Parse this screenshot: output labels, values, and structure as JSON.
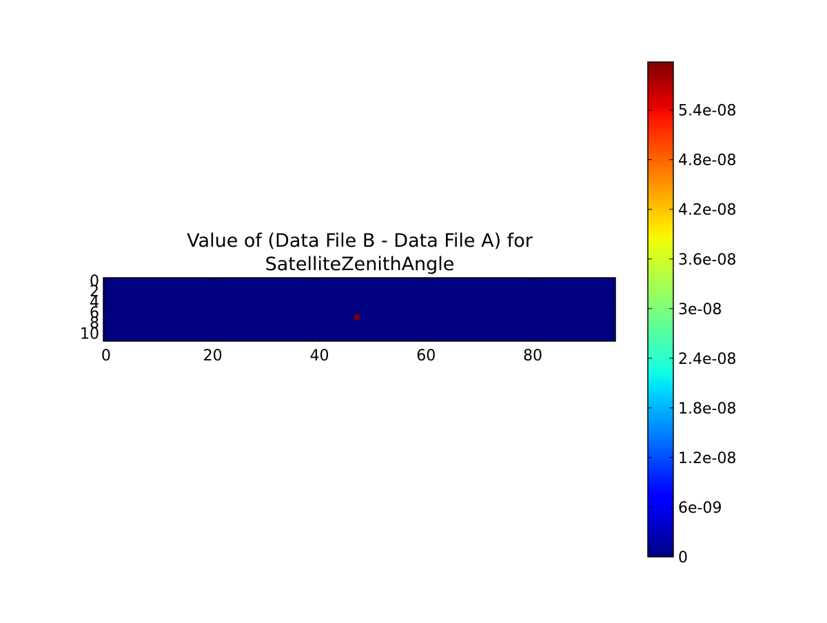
{
  "chart_data": {
    "type": "heatmap",
    "title": [
      "Value of (Data File B - Data File A) for",
      "SatelliteZenithAngle"
    ],
    "colormap": "jet",
    "xlim": [
      -0.5,
      95.5
    ],
    "ylim": [
      11.5,
      -0.5
    ],
    "xticks": [
      0,
      20,
      40,
      60,
      80
    ],
    "yticks": [
      0,
      2,
      4,
      6,
      8,
      10
    ],
    "clim": [
      0,
      5.98e-08
    ],
    "cticks": [
      0,
      {
        "value": 6e-09,
        "label": "6e-09"
      },
      {
        "value": 1.2e-08,
        "label": "1.2e-08"
      },
      {
        "value": 1.8e-08,
        "label": "1.8e-08"
      },
      {
        "value": 2.4e-08,
        "label": "2.4e-08"
      },
      {
        "value": 3e-08,
        "label": "3e-08"
      },
      {
        "value": 3.6e-08,
        "label": "3.6e-08"
      },
      {
        "value": 4.2e-08,
        "label": "4.2e-08"
      },
      {
        "value": 4.8e-08,
        "label": "4.8e-08"
      },
      {
        "value": 5.4e-08,
        "label": "5.4e-08"
      }
    ],
    "z": [
      [
        0,
        0,
        0,
        0,
        0,
        0,
        0,
        0,
        0,
        0,
        0,
        0,
        0,
        0,
        0,
        0,
        0,
        0,
        0,
        0,
        0,
        0,
        0,
        0,
        0,
        0,
        0,
        0,
        0,
        0,
        0,
        0,
        0,
        0,
        0,
        0,
        0,
        0,
        0,
        0,
        0,
        0,
        0,
        0,
        0,
        0,
        0,
        0,
        0,
        0,
        0,
        0,
        0,
        0,
        0,
        0,
        0,
        0,
        0,
        0,
        0,
        0,
        0,
        0,
        0,
        0,
        0,
        0,
        0,
        0,
        0,
        0,
        0,
        0,
        0,
        0,
        0,
        0,
        0,
        0,
        0,
        0,
        0,
        0,
        0,
        0,
        0,
        0,
        0,
        0,
        0,
        0,
        0,
        0,
        0,
        0
      ],
      [
        0,
        0,
        0,
        0,
        0,
        0,
        0,
        0,
        0,
        0,
        0,
        0,
        0,
        0,
        0,
        0,
        0,
        0,
        0,
        0,
        0,
        0,
        0,
        0,
        0,
        0,
        0,
        0,
        0,
        0,
        0,
        0,
        0,
        0,
        0,
        0,
        0,
        0,
        0,
        0,
        0,
        0,
        0,
        0,
        0,
        0,
        0,
        0,
        0,
        0,
        0,
        0,
        0,
        0,
        0,
        0,
        0,
        0,
        0,
        0,
        0,
        0,
        0,
        0,
        0,
        0,
        0,
        0,
        0,
        0,
        0,
        0,
        0,
        0,
        0,
        0,
        0,
        0,
        0,
        0,
        0,
        0,
        0,
        0,
        0,
        0,
        0,
        0,
        0,
        0,
        0,
        0,
        0,
        0,
        0,
        0
      ],
      [
        0,
        0,
        0,
        0,
        0,
        0,
        0,
        0,
        0,
        0,
        0,
        0,
        0,
        0,
        0,
        0,
        0,
        0,
        0,
        0,
        0,
        0,
        0,
        0,
        0,
        0,
        0,
        0,
        0,
        0,
        0,
        0,
        0,
        0,
        0,
        0,
        0,
        0,
        0,
        0,
        0,
        0,
        0,
        0,
        0,
        0,
        0,
        0,
        0,
        0,
        0,
        0,
        0,
        0,
        0,
        0,
        0,
        0,
        0,
        0,
        0,
        0,
        0,
        0,
        0,
        0,
        0,
        0,
        0,
        0,
        0,
        0,
        0,
        0,
        0,
        0,
        0,
        0,
        0,
        0,
        0,
        0,
        0,
        0,
        0,
        0,
        0,
        0,
        0,
        0,
        0,
        0,
        0,
        0,
        0,
        0
      ],
      [
        0,
        0,
        0,
        0,
        0,
        0,
        0,
        0,
        0,
        0,
        0,
        0,
        0,
        0,
        0,
        0,
        0,
        0,
        0,
        0,
        0,
        0,
        0,
        0,
        0,
        0,
        0,
        0,
        0,
        0,
        0,
        0,
        0,
        0,
        0,
        0,
        0,
        0,
        0,
        0,
        0,
        0,
        0,
        0,
        0,
        0,
        0,
        0,
        0,
        0,
        0,
        0,
        0,
        0,
        0,
        0,
        0,
        0,
        0,
        0,
        0,
        0,
        0,
        0,
        0,
        0,
        0,
        0,
        0,
        0,
        0,
        0,
        0,
        0,
        0,
        0,
        0,
        0,
        0,
        0,
        0,
        0,
        0,
        0,
        0,
        0,
        0,
        0,
        0,
        0,
        0,
        0,
        0,
        0,
        0,
        0
      ],
      [
        0,
        0,
        0,
        0,
        0,
        0,
        0,
        0,
        0,
        0,
        0,
        0,
        0,
        0,
        0,
        0,
        0,
        0,
        0,
        0,
        0,
        0,
        0,
        0,
        0,
        0,
        0,
        0,
        0,
        0,
        0,
        0,
        0,
        0,
        0,
        0,
        0,
        0,
        0,
        0,
        0,
        0,
        0,
        0,
        0,
        0,
        0,
        0,
        0,
        0,
        0,
        0,
        0,
        0,
        0,
        0,
        0,
        0,
        0,
        0,
        0,
        0,
        0,
        0,
        0,
        0,
        0,
        0,
        0,
        0,
        0,
        0,
        0,
        0,
        0,
        0,
        0,
        0,
        0,
        0,
        0,
        0,
        0,
        0,
        0,
        0,
        0,
        0,
        0,
        0,
        0,
        0,
        0,
        0,
        0,
        0
      ],
      [
        0,
        0,
        0,
        0,
        0,
        0,
        0,
        0,
        0,
        0,
        0,
        0,
        0,
        0,
        0,
        0,
        0,
        0,
        0,
        0,
        0,
        0,
        0,
        0,
        0,
        0,
        0,
        0,
        0,
        0,
        0,
        0,
        0,
        0,
        0,
        0,
        0,
        0,
        0,
        0,
        0,
        0,
        0,
        0,
        0,
        0,
        0,
        0,
        0,
        0,
        0,
        0,
        0,
        0,
        0,
        0,
        0,
        0,
        0,
        0,
        0,
        0,
        0,
        0,
        0,
        0,
        0,
        0,
        0,
        0,
        0,
        0,
        0,
        0,
        0,
        0,
        0,
        0,
        0,
        0,
        0,
        0,
        0,
        0,
        0,
        0,
        0,
        0,
        0,
        0,
        0,
        0,
        0,
        0,
        0,
        0
      ],
      [
        0,
        0,
        0,
        0,
        0,
        0,
        0,
        0,
        0,
        0,
        0,
        0,
        0,
        0,
        0,
        0,
        0,
        0,
        0,
        0,
        0,
        0,
        0,
        0,
        0,
        0,
        0,
        0,
        0,
        0,
        0,
        0,
        0,
        0,
        0,
        0,
        0,
        0,
        0,
        0,
        0,
        0,
        0,
        0,
        0,
        0,
        0,
        0,
        0,
        0,
        0,
        0,
        0,
        0,
        0,
        0,
        0,
        0,
        0,
        0,
        0,
        0,
        0,
        0,
        0,
        0,
        0,
        0,
        0,
        0,
        0,
        0,
        0,
        0,
        0,
        0,
        0,
        0,
        0,
        0,
        0,
        0,
        0,
        0,
        0,
        0,
        0,
        0,
        0,
        0,
        0,
        0,
        0,
        0,
        0,
        0
      ],
      [
        0,
        0,
        0,
        0,
        0,
        0,
        0,
        0,
        0,
        0,
        0,
        0,
        0,
        0,
        0,
        0,
        0,
        0,
        0,
        0,
        0,
        0,
        0,
        0,
        0,
        0,
        0,
        0,
        0,
        0,
        0,
        0,
        0,
        0,
        0,
        0,
        0,
        0,
        0,
        0,
        0,
        0,
        0,
        0,
        0,
        0,
        0,
        5.98e-08,
        0,
        0,
        0,
        0,
        0,
        0,
        0,
        0,
        0,
        0,
        0,
        0,
        0,
        0,
        0,
        0,
        0,
        0,
        0,
        0,
        0,
        0,
        0,
        0,
        0,
        0,
        0,
        0,
        0,
        0,
        0,
        0,
        0,
        0,
        0,
        0,
        0,
        0,
        0,
        0,
        0,
        0,
        0,
        0,
        0,
        0,
        0,
        0
      ],
      [
        0,
        0,
        0,
        0,
        0,
        0,
        0,
        0,
        0,
        0,
        0,
        0,
        0,
        0,
        0,
        0,
        0,
        0,
        0,
        0,
        0,
        0,
        0,
        0,
        0,
        0,
        0,
        0,
        0,
        0,
        0,
        0,
        0,
        0,
        0,
        0,
        0,
        0,
        0,
        0,
        0,
        0,
        0,
        0,
        0,
        0,
        0,
        0,
        0,
        0,
        0,
        0,
        0,
        0,
        0,
        0,
        0,
        0,
        0,
        0,
        0,
        0,
        0,
        0,
        0,
        0,
        0,
        0,
        0,
        0,
        0,
        0,
        0,
        0,
        0,
        0,
        0,
        0,
        0,
        0,
        0,
        0,
        0,
        0,
        0,
        0,
        0,
        0,
        0,
        0,
        0,
        0,
        0,
        0,
        0,
        0
      ],
      [
        0,
        0,
        0,
        0,
        0,
        0,
        0,
        0,
        0,
        0,
        0,
        0,
        0,
        0,
        0,
        0,
        0,
        0,
        0,
        0,
        0,
        0,
        0,
        0,
        0,
        0,
        0,
        0,
        0,
        0,
        0,
        0,
        0,
        0,
        0,
        0,
        0,
        0,
        0,
        0,
        0,
        0,
        0,
        0,
        0,
        0,
        0,
        0,
        0,
        0,
        0,
        0,
        0,
        0,
        0,
        0,
        0,
        0,
        0,
        0,
        0,
        0,
        0,
        0,
        0,
        0,
        0,
        0,
        0,
        0,
        0,
        0,
        0,
        0,
        0,
        0,
        0,
        0,
        0,
        0,
        0,
        0,
        0,
        0,
        0,
        0,
        0,
        0,
        0,
        0,
        0,
        0,
        0,
        0,
        0,
        0
      ],
      [
        0,
        0,
        0,
        0,
        0,
        0,
        0,
        0,
        0,
        0,
        0,
        0,
        0,
        0,
        0,
        0,
        0,
        0,
        0,
        0,
        0,
        0,
        0,
        0,
        0,
        0,
        0,
        0,
        0,
        0,
        0,
        0,
        0,
        0,
        0,
        0,
        0,
        0,
        0,
        0,
        0,
        0,
        0,
        0,
        0,
        0,
        0,
        0,
        0,
        0,
        0,
        0,
        0,
        0,
        0,
        0,
        0,
        0,
        0,
        0,
        0,
        0,
        0,
        0,
        0,
        0,
        0,
        0,
        0,
        0,
        0,
        0,
        0,
        0,
        0,
        0,
        0,
        0,
        0,
        0,
        0,
        0,
        0,
        0,
        0,
        0,
        0,
        0,
        0,
        0,
        0,
        0,
        0,
        0,
        0,
        0
      ],
      [
        0,
        0,
        0,
        0,
        0,
        0,
        0,
        0,
        0,
        0,
        0,
        0,
        0,
        0,
        0,
        0,
        0,
        0,
        0,
        0,
        0,
        0,
        0,
        0,
        0,
        0,
        0,
        0,
        0,
        0,
        0,
        0,
        0,
        0,
        0,
        0,
        0,
        0,
        0,
        0,
        0,
        0,
        0,
        0,
        0,
        0,
        0,
        0,
        0,
        0,
        0,
        0,
        0,
        0,
        0,
        0,
        0,
        0,
        0,
        0,
        0,
        0,
        0,
        0,
        0,
        0,
        0,
        0,
        0,
        0,
        0,
        0,
        0,
        0,
        0,
        0,
        0,
        0,
        0,
        0,
        0,
        0,
        0,
        0,
        0,
        0,
        0,
        0,
        0,
        0,
        0,
        0,
        0,
        0,
        0,
        0
      ]
    ]
  }
}
